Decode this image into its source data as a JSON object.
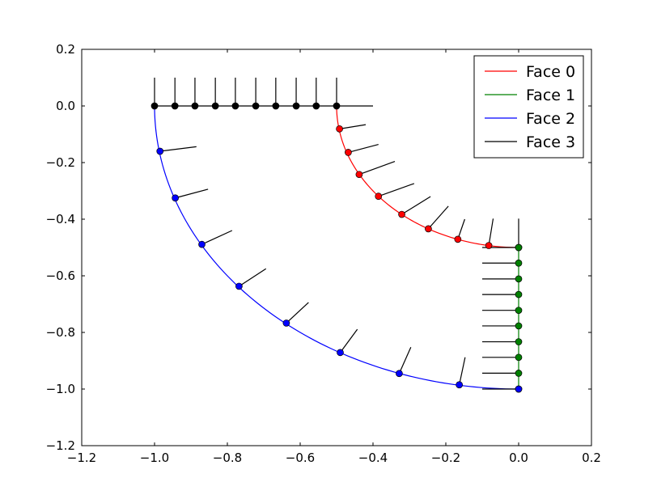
{
  "chart_data": {
    "type": "line",
    "xlim": [
      -1.2,
      0.2
    ],
    "ylim": [
      -1.2,
      0.2
    ],
    "xticks": [
      {
        "value": -1.2,
        "label": "−1.2"
      },
      {
        "value": -1.0,
        "label": "−1.0"
      },
      {
        "value": -0.8,
        "label": "−0.8"
      },
      {
        "value": -0.6,
        "label": "−0.6"
      },
      {
        "value": -0.4,
        "label": "−0.4"
      },
      {
        "value": -0.2,
        "label": "−0.2"
      },
      {
        "value": 0.0,
        "label": "0.0"
      },
      {
        "value": 0.2,
        "label": "0.2"
      }
    ],
    "yticks": [
      {
        "value": 0.2,
        "label": "0.2"
      },
      {
        "value": 0.0,
        "label": "0.0"
      },
      {
        "value": -0.2,
        "label": "−0.2"
      },
      {
        "value": -0.4,
        "label": "−0.4"
      },
      {
        "value": -0.6,
        "label": "−0.6"
      },
      {
        "value": -0.8,
        "label": "−0.8"
      },
      {
        "value": -1.0,
        "label": "−1.0"
      },
      {
        "value": -1.2,
        "label": "−1.2"
      }
    ],
    "grid": false,
    "legend_position": "top-right",
    "series": [
      {
        "name": "Face 0",
        "color": "#ff0000",
        "curve": {
          "shape": "arc",
          "center": [
            0,
            0
          ],
          "radius": 0.5,
          "theta_start_deg": 180,
          "theta_end_deg": 270
        },
        "points": [
          [
            -0.492,
            -0.081
          ],
          [
            -0.468,
            -0.164
          ],
          [
            -0.438,
            -0.242
          ],
          [
            -0.385,
            -0.319
          ],
          [
            -0.321,
            -0.383
          ],
          [
            -0.248,
            -0.434
          ],
          [
            -0.167,
            -0.471
          ],
          [
            -0.082,
            -0.493
          ],
          [
            0.0,
            -0.5
          ]
        ],
        "normals": [
          [
            -0.42,
            -0.066
          ],
          [
            -0.385,
            -0.136
          ],
          [
            -0.34,
            -0.196
          ],
          [
            -0.287,
            -0.274
          ],
          [
            -0.242,
            -0.32
          ],
          [
            -0.193,
            -0.354
          ],
          [
            -0.148,
            -0.4
          ],
          [
            -0.07,
            -0.398
          ],
          [
            0.0,
            -0.398
          ]
        ]
      },
      {
        "name": "Face 1",
        "color": "#008000",
        "curve": {
          "shape": "segment",
          "from": [
            0.0,
            -0.5
          ],
          "to": [
            0.0,
            -1.0
          ]
        },
        "points": [
          [
            0.0,
            -0.5
          ],
          [
            0.0,
            -0.555
          ],
          [
            0.0,
            -0.611
          ],
          [
            0.0,
            -0.666
          ],
          [
            0.0,
            -0.722
          ],
          [
            0.0,
            -0.777
          ],
          [
            0.0,
            -0.833
          ],
          [
            0.0,
            -0.888
          ],
          [
            0.0,
            -0.944
          ],
          [
            0.0,
            -1.0
          ]
        ],
        "normals": [
          [
            -0.1,
            -0.5
          ],
          [
            -0.1,
            -0.555
          ],
          [
            -0.1,
            -0.611
          ],
          [
            -0.1,
            -0.666
          ],
          [
            -0.1,
            -0.722
          ],
          [
            -0.1,
            -0.777
          ],
          [
            -0.1,
            -0.833
          ],
          [
            -0.1,
            -0.888
          ],
          [
            -0.1,
            -0.944
          ],
          [
            -0.1,
            -1.0
          ]
        ]
      },
      {
        "name": "Face 2",
        "color": "#0000ff",
        "curve": {
          "shape": "arc",
          "center": [
            0,
            0
          ],
          "radius": 1.0,
          "theta_start_deg": 180,
          "theta_end_deg": 270
        },
        "points": [
          [
            -0.985,
            -0.16
          ],
          [
            -0.943,
            -0.325
          ],
          [
            -0.87,
            -0.489
          ],
          [
            -0.768,
            -0.637
          ],
          [
            -0.638,
            -0.767
          ],
          [
            -0.49,
            -0.871
          ],
          [
            -0.328,
            -0.945
          ],
          [
            -0.163,
            -0.985
          ],
          [
            0.0,
            -1.0
          ]
        ],
        "normals": [
          [
            -0.885,
            -0.144
          ],
          [
            -0.853,
            -0.294
          ],
          [
            -0.787,
            -0.44
          ],
          [
            -0.694,
            -0.575
          ],
          [
            -0.577,
            -0.694
          ],
          [
            -0.443,
            -0.789
          ],
          [
            -0.296,
            -0.852
          ],
          [
            -0.147,
            -0.888
          ],
          [
            0.0,
            -1.0
          ]
        ]
      },
      {
        "name": "Face 3",
        "color": "#000000",
        "curve": {
          "shape": "segment",
          "from": [
            -1.0,
            0.0
          ],
          "to": [
            -0.5,
            0.0
          ]
        },
        "points": [
          [
            -1.0,
            0.0
          ],
          [
            -0.944,
            0.0
          ],
          [
            -0.889,
            0.0
          ],
          [
            -0.833,
            0.0
          ],
          [
            -0.778,
            0.0
          ],
          [
            -0.722,
            0.0
          ],
          [
            -0.667,
            0.0
          ],
          [
            -0.611,
            0.0
          ],
          [
            -0.556,
            0.0
          ],
          [
            -0.5,
            0.0
          ]
        ],
        "normals": [
          [
            -1.0,
            0.1
          ],
          [
            -0.944,
            0.1
          ],
          [
            -0.889,
            0.1
          ],
          [
            -0.833,
            0.1
          ],
          [
            -0.778,
            0.1
          ],
          [
            -0.722,
            0.1
          ],
          [
            -0.667,
            0.1
          ],
          [
            -0.611,
            0.1
          ],
          [
            -0.556,
            0.1
          ],
          [
            -0.5,
            0.1
          ]
        ],
        "extra_segments": [
          [
            [
              -0.5,
              0.0
            ],
            [
              -0.4,
              0.0
            ]
          ]
        ]
      }
    ]
  }
}
